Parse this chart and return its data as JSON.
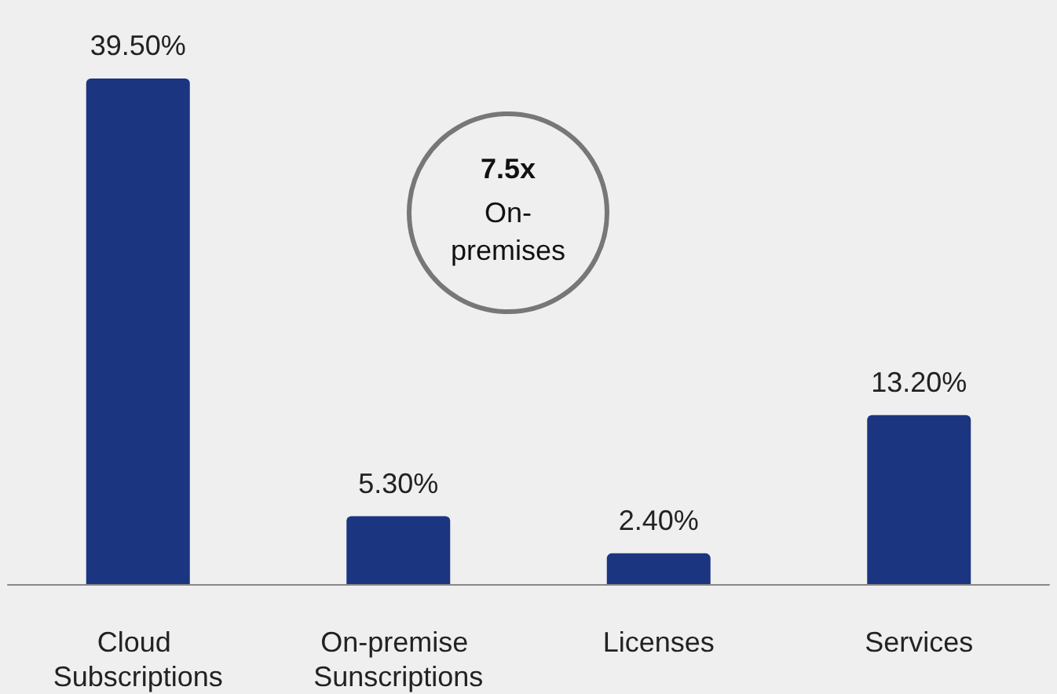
{
  "chart_data": {
    "type": "bar",
    "categories": [
      "Cloud Subscriptions",
      "On-premise Sunscriptions",
      "Licenses",
      "Services"
    ],
    "values": [
      39.5,
      5.3,
      2.4,
      13.2
    ],
    "value_labels": [
      "39.50%",
      "5.30%",
      "2.40%",
      "13.20%"
    ],
    "color": "#1b3580",
    "annotations": [
      "7.5x",
      "On-premises"
    ]
  }
}
